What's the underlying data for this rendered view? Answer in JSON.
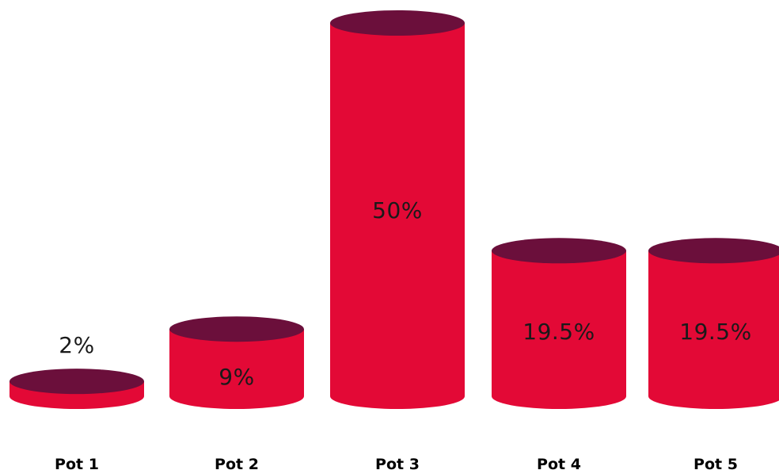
{
  "chart_data": {
    "type": "bar",
    "style": "3d-cylinder",
    "categories": [
      "Pot 1",
      "Pot 2",
      "Pot 3",
      "Pot 4",
      "Pot 5"
    ],
    "values": [
      2,
      9,
      50,
      19.5,
      19.5
    ],
    "value_labels": [
      "2%",
      "9%",
      "50%",
      "19.5%",
      "19.5%"
    ],
    "title": "",
    "xlabel": "",
    "ylabel": "",
    "ylim": [
      0,
      50
    ],
    "grid": false,
    "colors": {
      "body": "#e30936",
      "top": "#6b0f3b",
      "label_on_bar": "#1a1a1a",
      "label_above_bar": "#1a1a1a",
      "category_label": "#000000"
    }
  }
}
